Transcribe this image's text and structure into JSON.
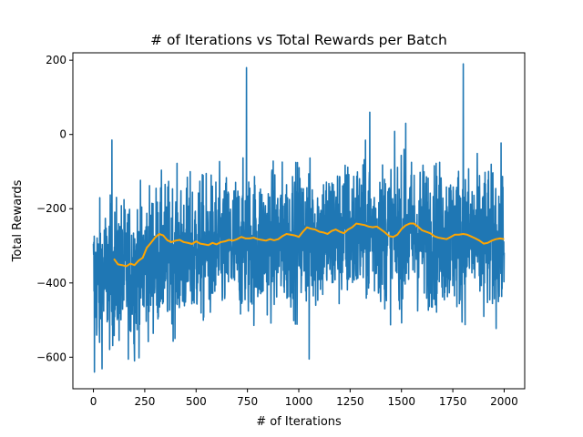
{
  "chart_data": {
    "type": "line",
    "title": "# of Iterations vs Total Rewards per Batch",
    "xlabel": "# of Iterations",
    "ylabel": "Total Rewards",
    "xlim": [
      -100,
      2100
    ],
    "ylim": [
      -685,
      220
    ],
    "xticks": [
      0,
      250,
      500,
      750,
      1000,
      1250,
      1500,
      1750,
      2000
    ],
    "yticks": [
      -600,
      -400,
      -200,
      0,
      200
    ],
    "xtick_labels": [
      "0",
      "250",
      "500",
      "750",
      "1000",
      "1250",
      "1500",
      "1750",
      "2000"
    ],
    "ytick_labels": [
      "−600",
      "−400",
      "−200",
      "0",
      "200"
    ],
    "grid": false,
    "series": [
      {
        "color": "#1f77b4",
        "kind": "raw",
        "n_points": 2000,
        "x_range": [
          0,
          2000
        ],
        "trend": [
          [
            0,
            -390
          ],
          [
            100,
            -375
          ],
          [
            200,
            -365
          ],
          [
            300,
            -330
          ],
          [
            400,
            -320
          ],
          [
            600,
            -305
          ],
          [
            800,
            -295
          ],
          [
            1000,
            -275
          ],
          [
            1200,
            -268
          ],
          [
            1300,
            -258
          ],
          [
            1500,
            -268
          ],
          [
            1600,
            -268
          ],
          [
            1800,
            -280
          ],
          [
            2000,
            -288
          ]
        ],
        "noise_amplitude": 170,
        "spikes": [
          [
            5,
            -640
          ],
          [
            30,
            -560
          ],
          [
            90,
            -15
          ],
          [
            200,
            -610
          ],
          [
            745,
            180
          ],
          [
            1050,
            -605
          ],
          [
            1345,
            60
          ],
          [
            1520,
            30
          ],
          [
            1800,
            190
          ],
          [
            1900,
            -490
          ]
        ]
      },
      {
        "color": "#ffa500",
        "kind": "moving-average",
        "x": [
          100,
          120,
          140,
          160,
          180,
          200,
          220,
          240,
          260,
          280,
          300,
          320,
          340,
          360,
          380,
          400,
          420,
          440,
          460,
          480,
          500,
          520,
          540,
          560,
          580,
          600,
          620,
          640,
          660,
          680,
          700,
          720,
          740,
          760,
          780,
          800,
          820,
          840,
          860,
          880,
          900,
          920,
          940,
          960,
          980,
          1000,
          1020,
          1040,
          1060,
          1080,
          1100,
          1120,
          1140,
          1160,
          1180,
          1200,
          1220,
          1240,
          1260,
          1280,
          1300,
          1320,
          1340,
          1360,
          1380,
          1400,
          1420,
          1440,
          1460,
          1480,
          1500,
          1520,
          1540,
          1560,
          1580,
          1600,
          1620,
          1640,
          1660,
          1680,
          1700,
          1720,
          1740,
          1760,
          1780,
          1800,
          1820,
          1840,
          1860,
          1880,
          1900,
          1920,
          1940,
          1960,
          1980,
          2000
        ],
        "y": [
          -335,
          -350,
          -352,
          -355,
          -348,
          -352,
          -340,
          -332,
          -305,
          -292,
          -278,
          -268,
          -272,
          -285,
          -290,
          -286,
          -284,
          -290,
          -292,
          -295,
          -288,
          -294,
          -296,
          -298,
          -292,
          -296,
          -290,
          -288,
          -284,
          -286,
          -282,
          -276,
          -280,
          -280,
          -278,
          -282,
          -284,
          -286,
          -282,
          -285,
          -282,
          -274,
          -268,
          -270,
          -272,
          -276,
          -262,
          -250,
          -254,
          -256,
          -262,
          -264,
          -268,
          -260,
          -256,
          -262,
          -266,
          -256,
          -250,
          -240,
          -242,
          -244,
          -248,
          -250,
          -248,
          -256,
          -264,
          -274,
          -276,
          -270,
          -255,
          -245,
          -240,
          -240,
          -248,
          -258,
          -262,
          -266,
          -274,
          -278,
          -280,
          -282,
          -276,
          -270,
          -270,
          -268,
          -270,
          -275,
          -280,
          -286,
          -294,
          -292,
          -286,
          -282,
          -280,
          -282
        ]
      }
    ]
  }
}
